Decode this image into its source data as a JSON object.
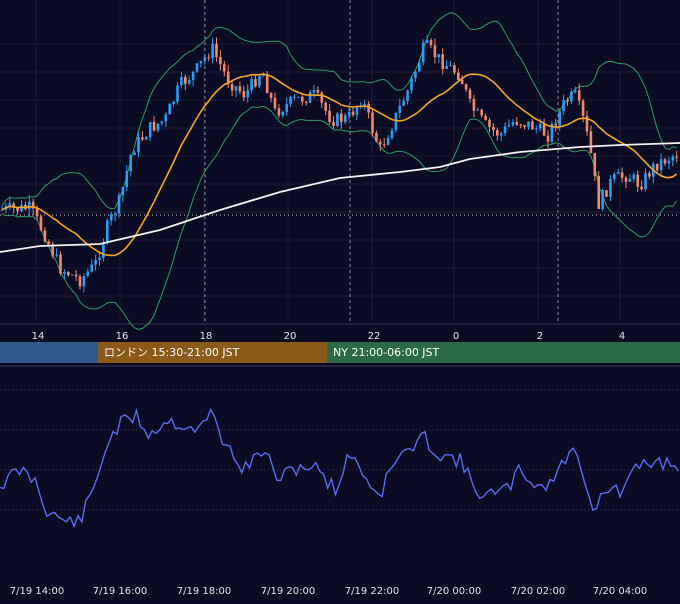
{
  "chart_data": {
    "type": "candlestick",
    "title": "",
    "price_axis_ticks": [
      "14",
      "16",
      "18",
      "20",
      "22",
      "0",
      "2",
      "4"
    ],
    "time_axis_ticks": [
      "7/19 14:00",
      "7/19 16:00",
      "7/19 18:00",
      "7/19 20:00",
      "7/19 22:00",
      "7/20 00:00",
      "7/20 02:00",
      "7/20 04:00"
    ],
    "sessions": [
      {
        "name": "tokyo",
        "label": "",
        "color": "#2e5a8c"
      },
      {
        "name": "london",
        "label": "ロンドン 15:30-21:00 JST",
        "color": "#8c5a18"
      },
      {
        "name": "ny",
        "label": "NY 21:00-06:00 JST",
        "color": "#2a6a44"
      }
    ],
    "grid": true,
    "colors": {
      "up": "#2a9df4",
      "down": "#f08a6a",
      "ma_short": "#f5a623",
      "ma_long": "#f2f2f2",
      "bollinger": "#2f9e5f",
      "oscillator": "#5b6cf0",
      "background": "#0b0b23"
    }
  }
}
